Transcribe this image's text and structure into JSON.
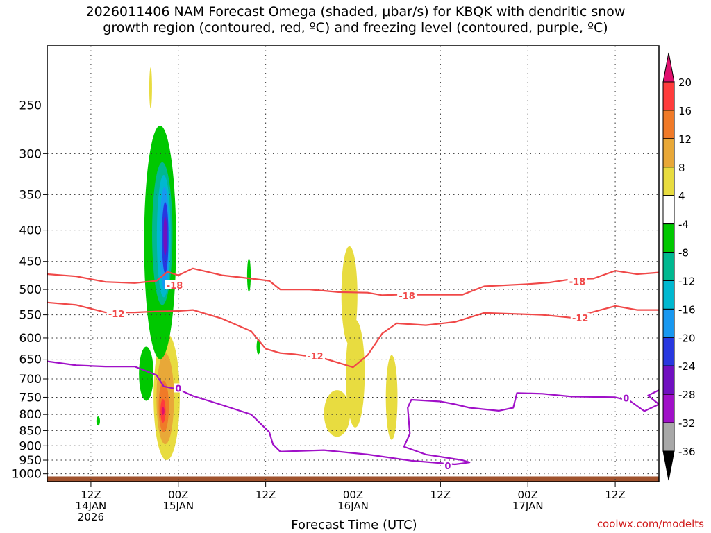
{
  "title_lines": [
    "2026011406 NAM Forecast Omega (shaded, μbar/s) for KBQK with dendritic snow",
    "growth region (contoured, red, ºC) and freezing level (contoured, purple, ºC)"
  ],
  "credit": "coolwx.com/modelts",
  "chart_data": {
    "type": "time-height cross section",
    "xlabel": "Forecast Time (UTC)",
    "x_ticks": [
      {
        "hour": 12,
        "lines": [
          "12Z",
          "14JAN",
          "2026"
        ]
      },
      {
        "hour": 24,
        "lines": [
          "00Z",
          "15JAN"
        ]
      },
      {
        "hour": 36,
        "lines": [
          "12Z"
        ]
      },
      {
        "hour": 48,
        "lines": [
          "00Z",
          "16JAN"
        ]
      },
      {
        "hour": 60,
        "lines": [
          "12Z"
        ]
      },
      {
        "hour": 72,
        "lines": [
          "00Z",
          "17JAN"
        ]
      },
      {
        "hour": 84,
        "lines": [
          "12Z"
        ]
      }
    ],
    "xlim_hours": [
      6,
      90
    ],
    "y_ticks": [
      250,
      300,
      350,
      400,
      450,
      500,
      550,
      600,
      650,
      700,
      750,
      800,
      850,
      900,
      950,
      1000
    ],
    "ylim_mb": [
      200,
      1030
    ],
    "y_scale": "log-pressure",
    "grid": "dotted",
    "colorbar": {
      "labels": [
        "20",
        "16",
        "12",
        "8",
        "4",
        "-4",
        "-8",
        "-12",
        "-16",
        "-20",
        "-24",
        "-28",
        "-32",
        "-36"
      ],
      "colors": [
        "#e0106e",
        "#ff3c3c",
        "#f07a28",
        "#e8a838",
        "#e8dc40",
        "#ffffff",
        "#00c800",
        "#00b890",
        "#00b8d0",
        "#1898f0",
        "#2838e0",
        "#7010c0",
        "#a010c8",
        "#a8a8a8",
        "#000000"
      ]
    },
    "contours": [
      {
        "label": "-18",
        "color": "#f04848",
        "label_at": [
          [
            23.5,
            492
          ],
          [
            55.4,
            512
          ],
          [
            78.8,
            485
          ]
        ],
        "points": [
          [
            6,
            472
          ],
          [
            10,
            476
          ],
          [
            14,
            486
          ],
          [
            18,
            488
          ],
          [
            21,
            484
          ],
          [
            22.5,
            468
          ],
          [
            24,
            474
          ],
          [
            26,
            462
          ],
          [
            30,
            474
          ],
          [
            34,
            480
          ],
          [
            36.5,
            484
          ],
          [
            38,
            500
          ],
          [
            42,
            500
          ],
          [
            46,
            505
          ],
          [
            50,
            506
          ],
          [
            52,
            511
          ],
          [
            54,
            510
          ],
          [
            60,
            510
          ],
          [
            63,
            510
          ],
          [
            66,
            494
          ],
          [
            72,
            490
          ],
          [
            75,
            487
          ],
          [
            78,
            481
          ],
          [
            81,
            480
          ],
          [
            84,
            466
          ],
          [
            87,
            472
          ],
          [
            90,
            469
          ]
        ]
      },
      {
        "label": "-12",
        "color": "#f04848",
        "label_at": [
          [
            15.5,
            548
          ],
          [
            42.8,
            642
          ],
          [
            79.2,
            556
          ]
        ],
        "points": [
          [
            6,
            525
          ],
          [
            10,
            530
          ],
          [
            14,
            545
          ],
          [
            18,
            545
          ],
          [
            21,
            543
          ],
          [
            24,
            542
          ],
          [
            26,
            540
          ],
          [
            30,
            558
          ],
          [
            34,
            585
          ],
          [
            36,
            625
          ],
          [
            38,
            635
          ],
          [
            40,
            638
          ],
          [
            44,
            648
          ],
          [
            48,
            670
          ],
          [
            50,
            640
          ],
          [
            52,
            590
          ],
          [
            54,
            568
          ],
          [
            58,
            572
          ],
          [
            62,
            565
          ],
          [
            66,
            546
          ],
          [
            70,
            548
          ],
          [
            74,
            550
          ],
          [
            78,
            556
          ],
          [
            80,
            548
          ],
          [
            84,
            532
          ],
          [
            87,
            540
          ],
          [
            90,
            540
          ]
        ]
      },
      {
        "label": "0",
        "color": "#a010c8",
        "label_at": [
          [
            24,
            725
          ],
          [
            61,
            970
          ],
          [
            85.5,
            752
          ]
        ],
        "points": [
          [
            6,
            655
          ],
          [
            10,
            665
          ],
          [
            14,
            668
          ],
          [
            18,
            668
          ],
          [
            21,
            690
          ],
          [
            22,
            720
          ],
          [
            24,
            728
          ],
          [
            26,
            746
          ],
          [
            30,
            772
          ],
          [
            34,
            800
          ],
          [
            36.5,
            855
          ],
          [
            37,
            895
          ],
          [
            38,
            920
          ],
          [
            44,
            915
          ],
          [
            50,
            930
          ],
          [
            56,
            952
          ],
          [
            62,
            965
          ],
          [
            64,
            958
          ],
          [
            63,
            950
          ],
          [
            58,
            930
          ],
          [
            55,
            903
          ],
          [
            55.8,
            860
          ],
          [
            55.5,
            780
          ],
          [
            56,
            757
          ],
          [
            60,
            762
          ],
          [
            62,
            770
          ],
          [
            64,
            780
          ],
          [
            68,
            789
          ],
          [
            70,
            780
          ],
          [
            70.5,
            738
          ],
          [
            74,
            740
          ],
          [
            78,
            748
          ],
          [
            84,
            750
          ],
          [
            86,
            760
          ],
          [
            88,
            790
          ],
          [
            90,
            770
          ],
          [
            88.5,
            745
          ],
          [
            90,
            730
          ]
        ]
      }
    ],
    "omega_blobs": [
      {
        "color": "#e8dc40",
        "hour": 20.2,
        "center_mb": 235,
        "half_hours": 0.15,
        "half_mb": 18
      },
      {
        "color": "#e8dc40",
        "hour": 22.4,
        "center_mb": 770,
        "half_hours": 1.8,
        "half_mb": 180
      },
      {
        "color": "#e8a838",
        "hour": 22.2,
        "center_mb": 765,
        "half_hours": 1.2,
        "half_mb": 130
      },
      {
        "color": "#f07a28",
        "hour": 22.0,
        "center_mb": 780,
        "half_hours": 0.7,
        "half_mb": 75
      },
      {
        "color": "#ff3c3c",
        "hour": 21.9,
        "center_mb": 790,
        "half_hours": 0.35,
        "half_mb": 35
      },
      {
        "color": "#e0106e",
        "hour": 21.9,
        "center_mb": 790,
        "half_hours": 0.15,
        "half_mb": 12
      },
      {
        "color": "#00c800",
        "hour": 21.5,
        "center_mb": 460,
        "half_hours": 2.2,
        "half_mb": 190
      },
      {
        "color": "#00c800",
        "hour": 19.6,
        "center_mb": 690,
        "half_hours": 1.0,
        "half_mb": 70
      },
      {
        "color": "#00b890",
        "hour": 21.8,
        "center_mb": 420,
        "half_hours": 1.4,
        "half_mb": 110
      },
      {
        "color": "#00b8d0",
        "hour": 22.0,
        "center_mb": 420,
        "half_hours": 0.95,
        "half_mb": 95
      },
      {
        "color": "#1898f0",
        "hour": 22.1,
        "center_mb": 420,
        "half_hours": 0.65,
        "half_mb": 80
      },
      {
        "color": "#2838e0",
        "hour": 22.2,
        "center_mb": 415,
        "half_hours": 0.45,
        "half_mb": 55
      },
      {
        "color": "#7010c0",
        "hour": 22.2,
        "center_mb": 410,
        "half_hours": 0.25,
        "half_mb": 30
      },
      {
        "color": "#00c800",
        "hour": 13.0,
        "center_mb": 820,
        "half_hours": 0.25,
        "half_mb": 14
      },
      {
        "color": "#00c800",
        "hour": 33.7,
        "center_mb": 475,
        "half_hours": 0.25,
        "half_mb": 30
      },
      {
        "color": "#00c800",
        "hour": 35.0,
        "center_mb": 620,
        "half_hours": 0.25,
        "half_mb": 18
      },
      {
        "color": "#e8dc40",
        "hour": 47.5,
        "center_mb": 520,
        "half_hours": 1.1,
        "half_mb": 95
      },
      {
        "color": "#e8dc40",
        "hour": 48.3,
        "center_mb": 700,
        "half_hours": 1.3,
        "half_mb": 140
      },
      {
        "color": "#e8dc40",
        "hour": 45.8,
        "center_mb": 800,
        "half_hours": 1.8,
        "half_mb": 70
      },
      {
        "color": "#e8dc40",
        "hour": 53.3,
        "center_mb": 760,
        "half_hours": 0.8,
        "half_mb": 120
      }
    ],
    "terrain": {
      "color": "#a0522d",
      "top_mb": 1010
    }
  }
}
